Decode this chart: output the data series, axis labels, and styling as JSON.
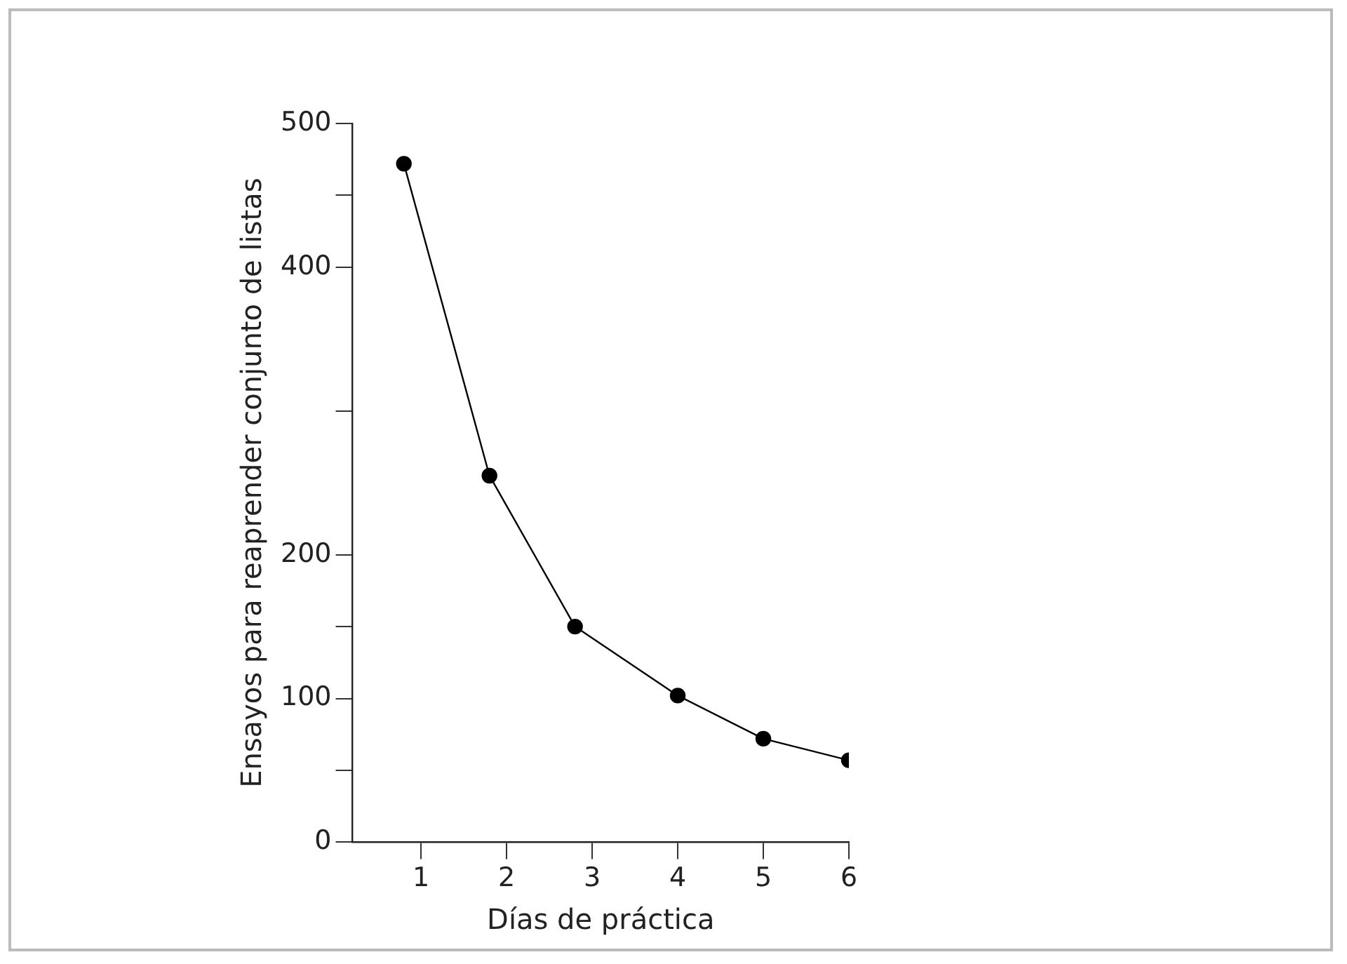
{
  "chart_data": {
    "type": "line",
    "xlabel": "Días de práctica",
    "ylabel": "Ensayos para reaprender conjunto de listas",
    "x": [
      0.8,
      1.8,
      2.8,
      4,
      5,
      6
    ],
    "series": [
      {
        "color": "#000000",
        "values": [
          472,
          255,
          150,
          102,
          72,
          57
        ]
      }
    ],
    "xlim": [
      0.2,
      6
    ],
    "xticks": [
      1,
      2,
      3,
      4,
      5,
      6
    ],
    "ylim": [
      0,
      500
    ],
    "yticks": [
      0,
      {
        "value": 50,
        "label": null
      },
      100,
      {
        "value": 150,
        "label": null
      },
      200,
      {
        "value": 300,
        "label": null
      },
      400,
      {
        "value": 450,
        "label": null
      },
      500
    ],
    "grid": false,
    "legend": false,
    "marker": "circle",
    "line_style": "solid"
  }
}
